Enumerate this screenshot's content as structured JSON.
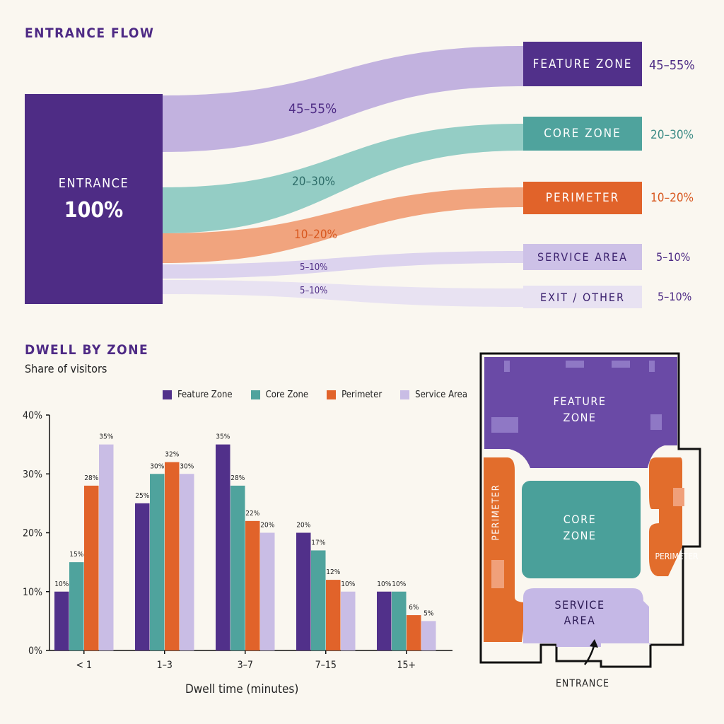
{
  "colors": {
    "feature": "#51308a",
    "core": "#4fa39d",
    "perimeter": "#e1632a",
    "service": "#c9bde5",
    "exit": "#e3ddf0",
    "title": "#4e2a85"
  },
  "flow": {
    "title": "ENTRANCE FLOW",
    "source": {
      "name": "ENTRANCE",
      "value": "100%"
    },
    "targets": [
      {
        "name": "FEATURE ZONE",
        "share": "45–55%"
      },
      {
        "name": "CORE ZONE",
        "share": "20–30%"
      },
      {
        "name": "PERIMETER",
        "share": "10–20%"
      },
      {
        "name": "SERVICE AREA",
        "share": "5–10%"
      },
      {
        "name": "EXIT / OTHER",
        "share": "5–10%"
      }
    ],
    "band_labels": [
      "45–55%",
      "20–30%",
      "10–20%",
      "5–10%",
      "5–10%"
    ]
  },
  "dwell": {
    "title": "DWELL BY ZONE",
    "subtitle": "Share of visitors"
  },
  "chart_data": {
    "type": "bar",
    "categories": [
      "< 1",
      "1–3",
      "3–7",
      "7–15",
      "15+"
    ],
    "series": [
      {
        "name": "Feature Zone",
        "values": [
          10,
          25,
          35,
          20,
          10
        ]
      },
      {
        "name": "Core Zone",
        "values": [
          15,
          30,
          28,
          17,
          10
        ]
      },
      {
        "name": "Perimeter",
        "values": [
          28,
          32,
          22,
          12,
          6
        ]
      },
      {
        "name": "Service Area",
        "values": [
          35,
          30,
          20,
          10,
          5
        ]
      }
    ],
    "value_labels": [
      [
        "10%",
        "25%",
        "35%",
        "20%",
        "10%"
      ],
      [
        "15%",
        "30%",
        "28%",
        "17%",
        "10%"
      ],
      [
        "28%",
        "32%",
        "22%",
        "12%",
        "6%"
      ],
      [
        "35%",
        "30%",
        "20%",
        "10%",
        "5%"
      ]
    ],
    "xlabel": "Dwell time (minutes)",
    "ylabel": "",
    "ylim": [
      0,
      40
    ],
    "yticks": [
      "0%",
      "10%",
      "20%",
      "30%",
      "40%"
    ],
    "legend": "top",
    "grid": false
  },
  "floorplan": {
    "zones": {
      "feature": "FEATURE\nZONE",
      "core": "CORE\nZONE",
      "perimeter_left": "PERIMETER",
      "perimeter_right": "PERIMETER",
      "service": "SERVICE\nAREA"
    },
    "entrance_label": "ENTRANCE"
  }
}
